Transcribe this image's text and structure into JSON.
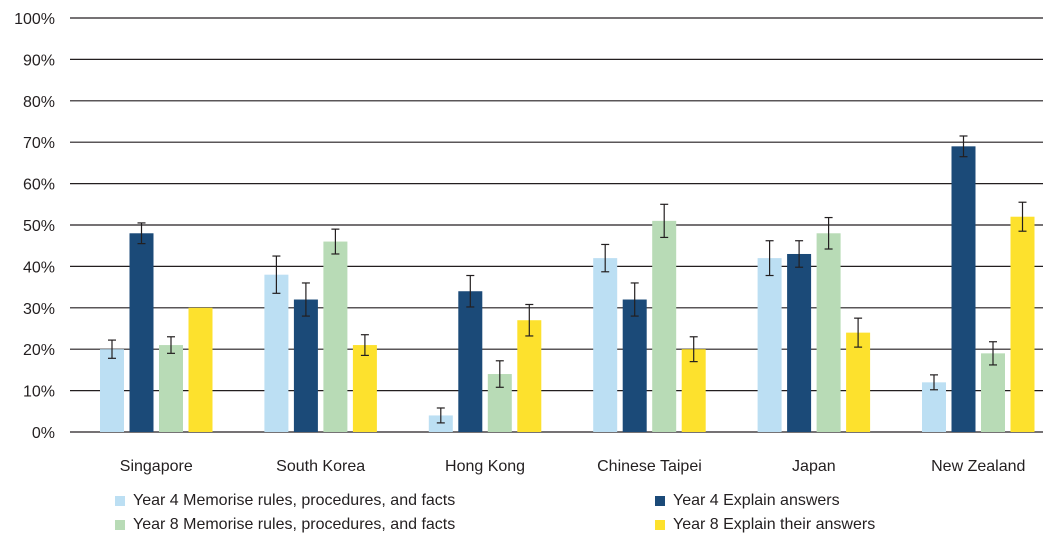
{
  "chart_data": {
    "type": "bar",
    "categories": [
      "Singapore",
      "South Korea",
      "Hong Kong",
      "Chinese Taipei",
      "Japan",
      "New Zealand"
    ],
    "series": [
      {
        "name": "Year 4 Memorise rules, procedures, and facts",
        "color": "#bcdff3",
        "values": [
          20,
          38,
          4,
          42,
          42,
          12
        ],
        "error": [
          2.2,
          4.5,
          1.8,
          3.3,
          4.2,
          1.8
        ]
      },
      {
        "name": "Year 4 Explain answers",
        "color": "#1b4a78",
        "values": [
          48,
          32,
          34,
          32,
          43,
          69
        ],
        "error": [
          2.5,
          4.0,
          3.8,
          4.0,
          3.2,
          2.5
        ]
      },
      {
        "name": "Year 8 Memorise rules, procedures, and facts",
        "color": "#b8dbb6",
        "values": [
          21,
          46,
          14,
          51,
          48,
          19
        ],
        "error": [
          2.0,
          3.0,
          3.2,
          4.0,
          3.8,
          2.8
        ]
      },
      {
        "name": "Year 8 Explain their answers",
        "color": "#fde12d",
        "values": [
          30,
          21,
          27,
          20,
          24,
          52
        ],
        "error": [
          null,
          2.5,
          3.8,
          3.0,
          3.5,
          3.5
        ]
      }
    ],
    "yticks": [
      "0%",
      "10%",
      "20%",
      "30%",
      "40%",
      "50%",
      "60%",
      "70%",
      "80%",
      "90%",
      "100%"
    ],
    "ylim": [
      0,
      100
    ],
    "grid": true,
    "legend_position": "bottom"
  }
}
